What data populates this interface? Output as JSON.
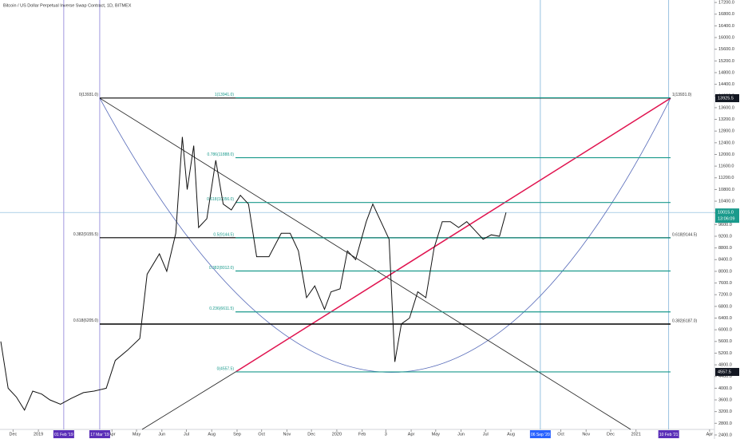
{
  "chart_data": {
    "type": "line",
    "title": "Bitcoin / US Dollar Perpetual Inverse Swap Contract, 1D, BITMEX",
    "x": [
      "2018-11-16",
      "2018-11-25",
      "2018-12-05",
      "2018-12-15",
      "2018-12-25",
      "2019-01-05",
      "2019-01-15",
      "2019-01-28",
      "2019-02-10",
      "2019-02-25",
      "2019-03-10",
      "2019-03-25",
      "2019-04-05",
      "2019-04-20",
      "2019-05-05",
      "2019-05-14",
      "2019-05-29",
      "2019-06-07",
      "2019-06-18",
      "2019-06-26",
      "2019-07-02",
      "2019-07-10",
      "2019-07-16",
      "2019-07-26",
      "2019-08-06",
      "2019-08-15",
      "2019-08-25",
      "2019-09-05",
      "2019-09-15",
      "2019-09-25",
      "2019-10-10",
      "2019-10-25",
      "2019-11-05",
      "2019-11-15",
      "2019-11-25",
      "2019-12-05",
      "2019-12-17",
      "2019-12-25",
      "2020-01-05",
      "2020-01-14",
      "2020-01-24",
      "2020-02-06",
      "2020-02-14",
      "2020-02-24",
      "2020-03-05",
      "2020-03-12",
      "2020-03-20",
      "2020-03-30",
      "2020-04-09",
      "2020-04-19",
      "2020-04-29",
      "2020-05-09",
      "2020-05-19",
      "2020-05-29",
      "2020-06-08",
      "2020-06-18",
      "2020-06-28",
      "2020-07-08",
      "2020-07-18",
      "2020-07-26"
    ],
    "series": [
      {
        "name": "BTC",
        "color": "#111111",
        "values": [
          5600,
          4000,
          3700,
          3250,
          3900,
          3800,
          3600,
          3450,
          3650,
          3850,
          3900,
          4000,
          4950,
          5300,
          5700,
          7900,
          8600,
          8000,
          9300,
          12600,
          10800,
          12300,
          9500,
          9800,
          11800,
          10300,
          10100,
          10600,
          10300,
          8500,
          8500,
          9300,
          9300,
          8700,
          7100,
          7500,
          6700,
          7300,
          7400,
          8700,
          8400,
          9700,
          10300,
          9700,
          9100,
          4900,
          6200,
          6400,
          7300,
          7100,
          8800,
          9700,
          9700,
          9500,
          9700,
          9400,
          9100,
          9250,
          9200,
          10015
        ]
      }
    ],
    "xlim": [
      "2018-11-15",
      "2021-04-07"
    ],
    "xticks": [
      {
        "value": "2018-12-01",
        "label": "Dec"
      },
      {
        "value": "2019-01-01",
        "label": "2019"
      },
      {
        "value": "2019-04-01",
        "label": "Apr"
      },
      {
        "value": "2019-05-01",
        "label": "May"
      },
      {
        "value": "2019-06-01",
        "label": "Jun"
      },
      {
        "value": "2019-07-01",
        "label": "Jul"
      },
      {
        "value": "2019-08-01",
        "label": "Aug"
      },
      {
        "value": "2019-09-01",
        "label": "Sep"
      },
      {
        "value": "2019-10-01",
        "label": "Oct"
      },
      {
        "value": "2019-11-01",
        "label": "Nov"
      },
      {
        "value": "2019-12-01",
        "label": "Dec"
      },
      {
        "value": "2020-01-01",
        "label": "2020"
      },
      {
        "value": "2020-02-01",
        "label": "Feb"
      },
      {
        "value": "2020-03-01",
        "label": "3"
      },
      {
        "value": "2020-04-01",
        "label": "Apr"
      },
      {
        "value": "2020-05-01",
        "label": "May"
      },
      {
        "value": "2020-06-01",
        "label": "Jun"
      },
      {
        "value": "2020-07-01",
        "label": "Jul"
      },
      {
        "value": "2020-08-01",
        "label": "Aug"
      },
      {
        "value": "2020-10-01",
        "label": "Oct"
      },
      {
        "value": "2020-11-01",
        "label": "Nov"
      },
      {
        "value": "2020-12-01",
        "label": "Dec"
      },
      {
        "value": "2021-01-01",
        "label": "2021"
      },
      {
        "value": "2021-04-01",
        "label": "Apr"
      }
    ],
    "ylim": [
      2262,
      17285
    ],
    "yticks": [
      {
        "value": 2400,
        "label": "2400.0"
      },
      {
        "value": 2800,
        "label": "2800.0"
      },
      {
        "value": 3200,
        "label": "3200.0"
      },
      {
        "value": 3600,
        "label": "3600.0"
      },
      {
        "value": 4000,
        "label": "4000.0"
      },
      {
        "value": 4400,
        "label": "4400.0"
      },
      {
        "value": 4800,
        "label": "4800.0"
      },
      {
        "value": 5200,
        "label": "5200.0"
      },
      {
        "value": 5600,
        "label": "5600.0"
      },
      {
        "value": 6000,
        "label": "6000.0"
      },
      {
        "value": 6400,
        "label": "6400.0"
      },
      {
        "value": 6800,
        "label": "6800.0"
      },
      {
        "value": 7200,
        "label": "7200.0"
      },
      {
        "value": 7600,
        "label": "7600.0"
      },
      {
        "value": 8000,
        "label": "8000.0"
      },
      {
        "value": 8400,
        "label": "8400.0"
      },
      {
        "value": 8800,
        "label": "8800.0"
      },
      {
        "value": 9200,
        "label": "9200.0"
      },
      {
        "value": 9600,
        "label": "9600.0"
      },
      {
        "value": 10000,
        "label": "10000.0"
      },
      {
        "value": 10400,
        "label": "10400.0"
      },
      {
        "value": 10800,
        "label": "10800.0"
      },
      {
        "value": 11200,
        "label": "11200.0"
      },
      {
        "value": 11600,
        "label": "11600.0"
      },
      {
        "value": 12000,
        "label": "12000.0"
      },
      {
        "value": 12400,
        "label": "12400.0"
      },
      {
        "value": 12800,
        "label": "12800.0"
      },
      {
        "value": 13200,
        "label": "13200.0"
      },
      {
        "value": 13600,
        "label": "13600.0"
      },
      {
        "value": 14000,
        "label": "14000.0"
      },
      {
        "value": 14400,
        "label": "14400.0"
      },
      {
        "value": 14800,
        "label": "14800.0"
      },
      {
        "value": 15200,
        "label": "15200.0"
      },
      {
        "value": 15600,
        "label": "15600.0"
      },
      {
        "value": 16000,
        "label": "16000.0"
      },
      {
        "value": 16400,
        "label": "16400.0"
      },
      {
        "value": 16800,
        "label": "16800.0"
      },
      {
        "value": 17200,
        "label": "17200.0"
      }
    ],
    "fib_teal": {
      "color": "#1a9a8c",
      "levels": [
        {
          "price": 13941.0,
          "label": "1(13941.0)"
        },
        {
          "price": 11888.0,
          "label": "0.786(11888.0)"
        },
        {
          "price": 10356.0,
          "label": "0.618(10356.0)"
        },
        {
          "price": 9144.5,
          "label": "0.5(9144.5)"
        },
        {
          "price": 8012.0,
          "label": "0.382(8012.0)"
        },
        {
          "price": 6611.5,
          "label": "0.236(6611.5)"
        },
        {
          "price": 4557.5,
          "label": "0(4557.5)"
        }
      ]
    },
    "fib_black_left": {
      "color": "#000000",
      "levels": [
        {
          "price": 13931.0,
          "label": "0(13931.0)"
        },
        {
          "price": 9155.5,
          "label": "0.382(9155.5)"
        },
        {
          "price": 6205.0,
          "label": "0.618(6205.0)"
        }
      ]
    },
    "fib_black_right": {
      "color": "#000000",
      "levels": [
        {
          "price": 13931.0,
          "label": "1(13931.0)"
        },
        {
          "price": 9144.5,
          "label": "0.618(9144.5)"
        },
        {
          "price": 6187.0,
          "label": "0.382(6187.0)"
        }
      ]
    },
    "price_labels": [
      {
        "price": 13925.5,
        "label": "13925.5",
        "color": "#131722"
      },
      {
        "price": 10015.0,
        "label": "10015.0",
        "color": "#1a9a8c",
        "time": "13:06:09"
      },
      {
        "price": 4557.5,
        "label": "4557.5",
        "color": "#131722"
      }
    ],
    "date_markers": [
      {
        "date": "2019-02-01",
        "label": "01 Feb '19",
        "color": "#5b2fb8"
      },
      {
        "date": "2019-03-17",
        "label": "17 Mar '19",
        "color": "#5b2fb8"
      },
      {
        "date": "2020-09-06",
        "label": "06 Sep '20",
        "color": "#2962ff"
      },
      {
        "date": "2021-02-10",
        "label": "10 Feb '21",
        "color": "#5b2fb8"
      }
    ]
  }
}
